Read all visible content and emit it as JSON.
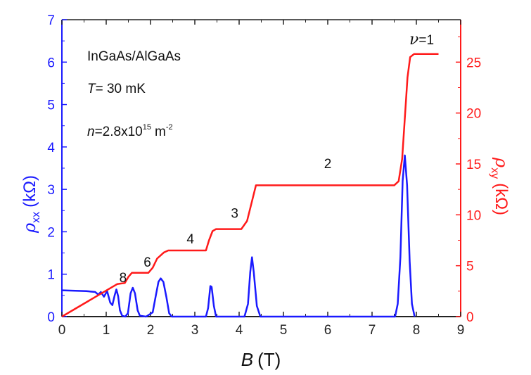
{
  "chart_data": {
    "type": "line",
    "x_axis": {
      "label_symbol": "B",
      "label_unit": "(T)",
      "range": [
        0,
        9
      ],
      "ticks": [
        "0",
        "1",
        "2",
        "3",
        "4",
        "5",
        "6",
        "7",
        "8",
        "9"
      ]
    },
    "y_left": {
      "label_symbol": "ρ",
      "label_sub": "xx",
      "label_unit": "(kΩ)",
      "range": [
        0,
        7
      ],
      "ticks": [
        "0",
        "1",
        "2",
        "3",
        "4",
        "5",
        "6",
        "7"
      ],
      "color": "#1a1aff"
    },
    "y_right": {
      "label_symbol": "ρ",
      "label_sub": "xy",
      "label_unit": "(kΩ)",
      "range": [
        0,
        29.17
      ],
      "ticks": [
        "0",
        "5",
        "10",
        "15",
        "20",
        "25"
      ],
      "color": "#ff1a1a"
    },
    "annotations": {
      "sample": "InGaAs/AlGaAs",
      "temp_symbol": "T",
      "temp_value": "= 30 mK",
      "density_symbol": "n",
      "density_value": "=2.8x10",
      "density_exp": "15",
      "density_unit": "m",
      "density_unit_exp": "-2",
      "nu_symbol": "ν",
      "nu_value": "=1",
      "filling_labels": [
        {
          "text": "8",
          "x": 1.38,
          "y_right": 3.4
        },
        {
          "text": "6",
          "x": 1.93,
          "y_right": 4.9
        },
        {
          "text": "4",
          "x": 2.9,
          "y_right": 7.2
        },
        {
          "text": "3",
          "x": 3.9,
          "y_right": 9.7
        },
        {
          "text": "2",
          "x": 6.0,
          "y_right": 14.6
        }
      ]
    },
    "series": [
      {
        "axis": "left",
        "color": "#1a1aff",
        "points": [
          [
            0,
            0.62
          ],
          [
            0.3,
            0.61
          ],
          [
            0.55,
            0.6
          ],
          [
            0.75,
            0.58
          ],
          [
            0.82,
            0.52
          ],
          [
            0.88,
            0.58
          ],
          [
            0.95,
            0.47
          ],
          [
            1.02,
            0.6
          ],
          [
            1.09,
            0.33
          ],
          [
            1.14,
            0.27
          ],
          [
            1.19,
            0.5
          ],
          [
            1.23,
            0.64
          ],
          [
            1.27,
            0.48
          ],
          [
            1.31,
            0.15
          ],
          [
            1.36,
            0.02
          ],
          [
            1.43,
            0.0
          ],
          [
            1.49,
            0.08
          ],
          [
            1.55,
            0.55
          ],
          [
            1.6,
            0.68
          ],
          [
            1.65,
            0.55
          ],
          [
            1.71,
            0.15
          ],
          [
            1.76,
            0.02
          ],
          [
            1.9,
            0.0
          ],
          [
            2.05,
            0.1
          ],
          [
            2.12,
            0.5
          ],
          [
            2.18,
            0.82
          ],
          [
            2.23,
            0.9
          ],
          [
            2.29,
            0.82
          ],
          [
            2.36,
            0.45
          ],
          [
            2.42,
            0.08
          ],
          [
            2.48,
            0.0
          ],
          [
            3.25,
            0.0
          ],
          [
            3.3,
            0.2
          ],
          [
            3.35,
            0.72
          ],
          [
            3.38,
            0.7
          ],
          [
            3.43,
            0.25
          ],
          [
            3.48,
            0.0
          ],
          [
            4.12,
            0.0
          ],
          [
            4.2,
            0.3
          ],
          [
            4.25,
            1.05
          ],
          [
            4.29,
            1.4
          ],
          [
            4.33,
            1.05
          ],
          [
            4.4,
            0.25
          ],
          [
            4.48,
            0.0
          ],
          [
            7.52,
            0.0
          ],
          [
            7.58,
            0.3
          ],
          [
            7.64,
            1.4
          ],
          [
            7.69,
            3.2
          ],
          [
            7.74,
            3.8
          ],
          [
            7.79,
            3.1
          ],
          [
            7.85,
            1.3
          ],
          [
            7.9,
            0.3
          ],
          [
            7.96,
            0.0
          ]
        ]
      },
      {
        "axis": "right",
        "color": "#ff1a1a",
        "points": [
          [
            0,
            0.0
          ],
          [
            1.25,
            3.2
          ],
          [
            1.33,
            3.25
          ],
          [
            1.42,
            3.3
          ],
          [
            1.5,
            3.9
          ],
          [
            1.58,
            4.3
          ],
          [
            1.95,
            4.3
          ],
          [
            2.05,
            4.8
          ],
          [
            2.15,
            5.7
          ],
          [
            2.3,
            6.3
          ],
          [
            2.4,
            6.5
          ],
          [
            3.25,
            6.5
          ],
          [
            3.32,
            7.5
          ],
          [
            3.4,
            8.4
          ],
          [
            3.48,
            8.6
          ],
          [
            4.05,
            8.6
          ],
          [
            4.18,
            9.4
          ],
          [
            4.3,
            11.5
          ],
          [
            4.38,
            12.9
          ],
          [
            7.5,
            12.9
          ],
          [
            7.6,
            13.3
          ],
          [
            7.68,
            15.5
          ],
          [
            7.74,
            19.5
          ],
          [
            7.8,
            23.5
          ],
          [
            7.86,
            25.5
          ],
          [
            7.95,
            25.8
          ],
          [
            8.5,
            25.8
          ]
        ]
      }
    ]
  }
}
